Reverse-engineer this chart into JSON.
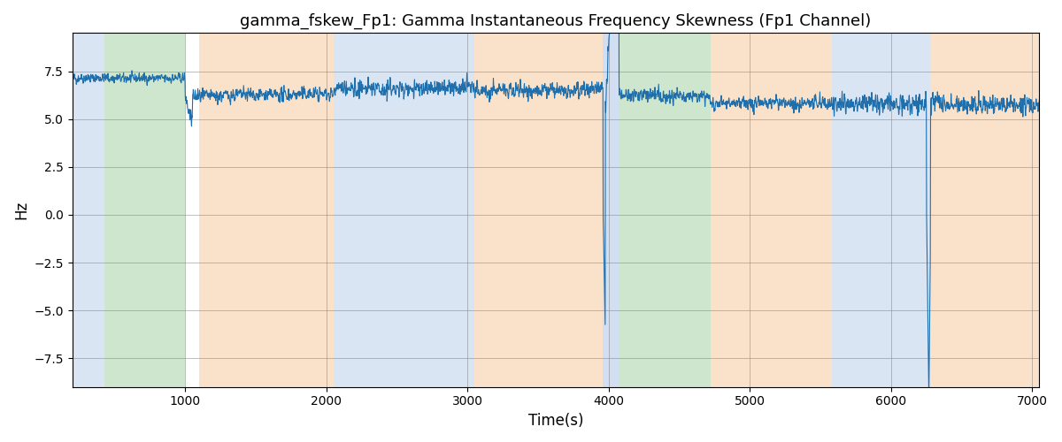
{
  "title": "gamma_fskew_Fp1: Gamma Instantaneous Frequency Skewness (Fp1 Channel)",
  "xlabel": "Time(s)",
  "ylabel": "Hz",
  "xlim": [
    200,
    7050
  ],
  "ylim": [
    -9,
    9.5
  ],
  "yticks": [
    -7.5,
    -5.0,
    -2.5,
    0.0,
    2.5,
    5.0,
    7.5
  ],
  "xticks": [
    1000,
    2000,
    3000,
    4000,
    5000,
    6000,
    7000
  ],
  "bg_regions": [
    {
      "start": 200,
      "end": 430,
      "color": "#aec6e8",
      "alpha": 0.45
    },
    {
      "start": 430,
      "end": 1000,
      "color": "#90c990",
      "alpha": 0.45
    },
    {
      "start": 1100,
      "end": 2050,
      "color": "#f5c08a",
      "alpha": 0.45
    },
    {
      "start": 2050,
      "end": 3050,
      "color": "#aec6e8",
      "alpha": 0.45
    },
    {
      "start": 3050,
      "end": 3960,
      "color": "#f5c08a",
      "alpha": 0.45
    },
    {
      "start": 3960,
      "end": 4070,
      "color": "#aec6e8",
      "alpha": 0.55
    },
    {
      "start": 4070,
      "end": 4720,
      "color": "#90c990",
      "alpha": 0.45
    },
    {
      "start": 4720,
      "end": 5580,
      "color": "#f5c08a",
      "alpha": 0.45
    },
    {
      "start": 5580,
      "end": 6280,
      "color": "#aec6e8",
      "alpha": 0.45
    },
    {
      "start": 6280,
      "end": 7050,
      "color": "#f5c08a",
      "alpha": 0.45
    }
  ],
  "line_color": "#1f6fad",
  "line_width": 0.8,
  "seed": 42,
  "n_points": 3400,
  "segments": [
    {
      "t_start": 200,
      "t_end": 1000,
      "mean": 7.15,
      "std": 0.18,
      "drift": 0.0001
    },
    {
      "t_start": 1000,
      "t_end": 1050,
      "mean": 6.0,
      "std": 0.5,
      "drift": -0.05
    },
    {
      "t_start": 1050,
      "t_end": 2050,
      "mean": 6.2,
      "std": 0.25,
      "drift": 0.0
    },
    {
      "t_start": 2050,
      "t_end": 3050,
      "mean": 6.6,
      "std": 0.3,
      "drift": 0.0
    },
    {
      "t_start": 3050,
      "t_end": 3960,
      "mean": 6.5,
      "std": 0.28,
      "drift": 0.0
    },
    {
      "t_start": 3960,
      "t_end": 3975,
      "mean": 0.0,
      "std": 0.1,
      "drift": -0.8
    },
    {
      "t_start": 3975,
      "t_end": 4070,
      "mean": 5.5,
      "std": 0.3,
      "drift": 0.3
    },
    {
      "t_start": 4070,
      "t_end": 4720,
      "mean": 6.3,
      "std": 0.25,
      "drift": 0.0
    },
    {
      "t_start": 4720,
      "t_end": 5580,
      "mean": 5.8,
      "std": 0.25,
      "drift": 0.0
    },
    {
      "t_start": 5580,
      "t_end": 6250,
      "mean": 5.9,
      "std": 0.35,
      "drift": 0.0
    },
    {
      "t_start": 6250,
      "t_end": 6270,
      "mean": 0.0,
      "std": 0.1,
      "drift": -1.2
    },
    {
      "t_start": 6270,
      "t_end": 6280,
      "mean": -8.0,
      "std": 0.1,
      "drift": 1.5
    },
    {
      "t_start": 6280,
      "t_end": 7050,
      "mean": 5.8,
      "std": 0.35,
      "drift": 0.0
    }
  ]
}
